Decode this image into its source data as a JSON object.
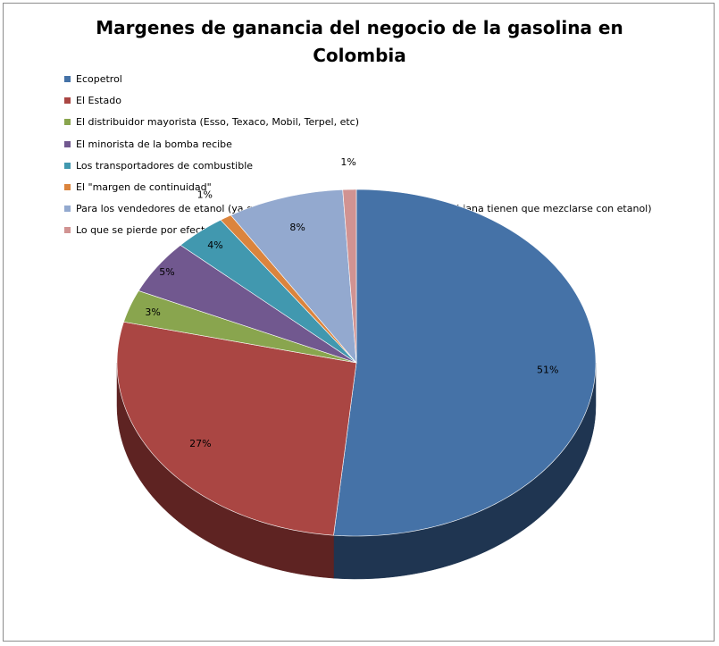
{
  "chart_data": {
    "type": "pie",
    "title_lines": [
      "Margenes de ganancia del negocio de la gasolina en",
      "Colombia"
    ],
    "legend_position": "top-left",
    "three_d": true,
    "series": [
      {
        "name": "Ecopetrol",
        "value": 51,
        "label": "51%",
        "color": "#4572a7",
        "side": "#1f3551"
      },
      {
        "name": "El Estado",
        "value": 27,
        "label": "27%",
        "color": "#aa4643",
        "side": "#5e2322"
      },
      {
        "name": "El distribuidor mayorista (Esso, Texaco, Mobil, Terpel, etc)",
        "value": 3,
        "label": "3%",
        "color": "#89a54e",
        "side": "#4b5b2a"
      },
      {
        "name": "El minorista de la bomba recibe",
        "value": 5,
        "label": "5%",
        "color": "#71588f",
        "side": "#3d2f4f"
      },
      {
        "name": "Los transportadores de combustible",
        "value": 3.5,
        "label": "4%",
        "color": "#4198af",
        "side": "#215260"
      },
      {
        "name": "El \"margen de continuidad\"",
        "value": 0.8,
        "label": "1%",
        "color": "#db843d",
        "side": "#7a461d"
      },
      {
        "name": "Para los vendedores de etanol (ya que algunas variedades de gasolina colombiana tienen que mezclarse con etanol)",
        "value": 7.8,
        "label": "8%",
        "color": "#93a9cf",
        "side": "#56647c"
      },
      {
        "name": "Lo que se pierde por efectos de la evaporación",
        "value": 0.9,
        "label": "1%",
        "color": "#d19392",
        "side": "#7a5453"
      }
    ]
  }
}
